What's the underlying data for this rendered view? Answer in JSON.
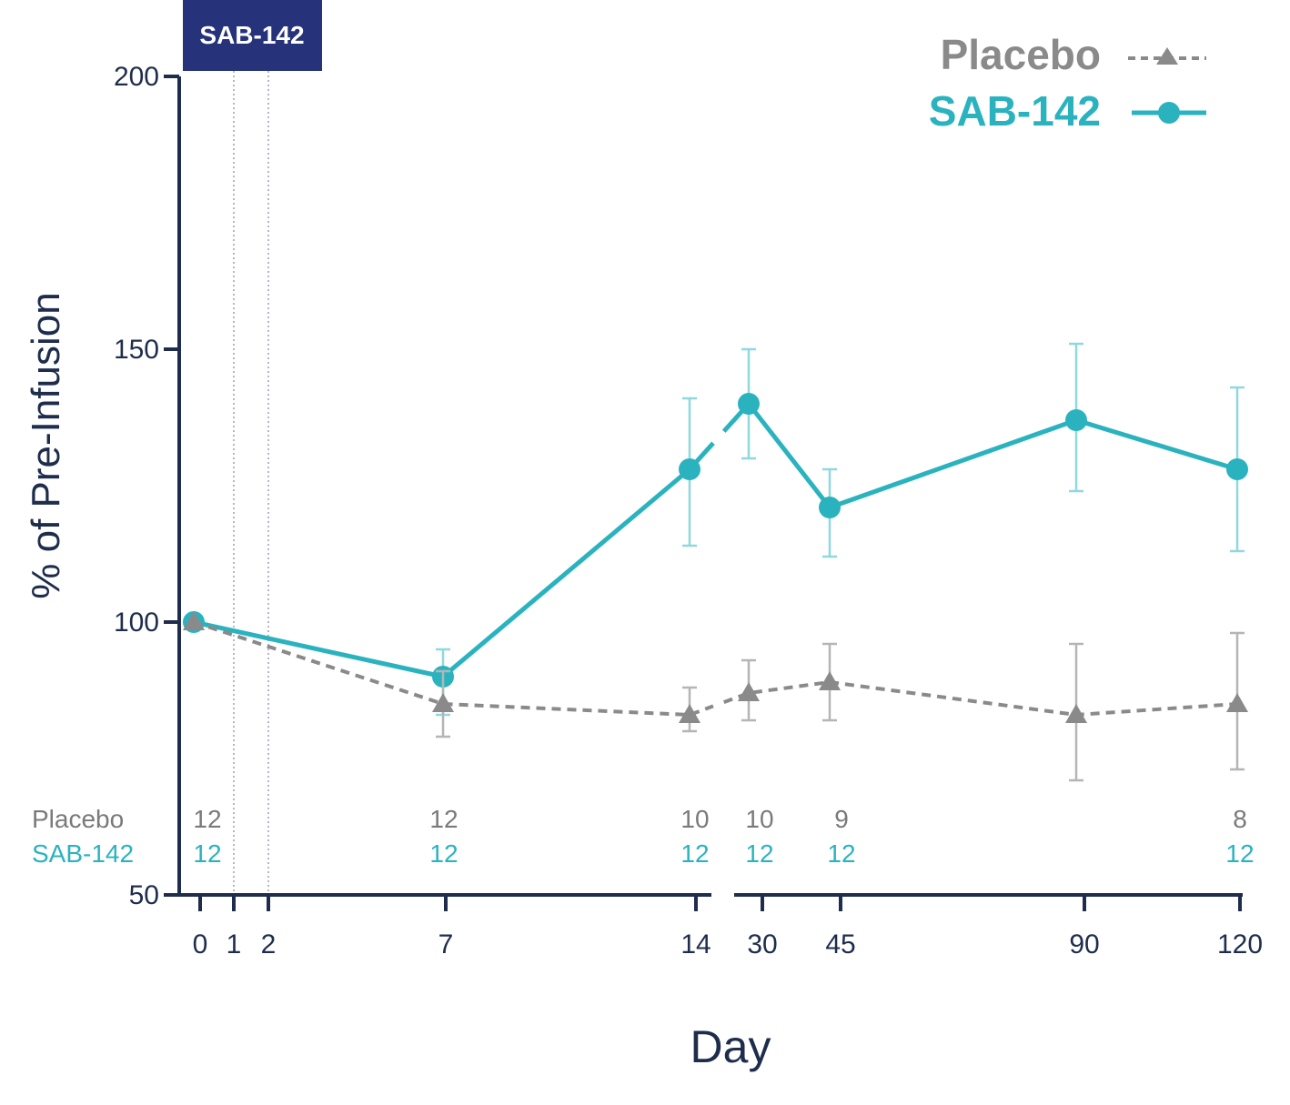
{
  "chart_data": {
    "type": "line",
    "xlabel": "Day",
    "ylabel": "% of Pre-Infusion",
    "ylim": [
      50,
      200
    ],
    "yticks": [
      "50",
      "100",
      "150",
      "200"
    ],
    "xtick_labels": [
      "0",
      "1",
      "2",
      "7",
      "14",
      "30",
      "45",
      "90",
      "120"
    ],
    "x_axis_broken": true,
    "dosing_box_label": "SAB-142",
    "series": [
      {
        "name": "SAB-142",
        "color": "#2ab3bf",
        "marker": "circle",
        "line": "solid",
        "x": [
          0,
          7,
          14,
          30,
          45,
          90,
          120
        ],
        "y": [
          100,
          90,
          128,
          140,
          121,
          137,
          128
        ],
        "err_low": [
          100,
          83,
          114,
          130,
          112,
          124,
          113
        ],
        "err_high": [
          100,
          95,
          141,
          150,
          128,
          151,
          143
        ]
      },
      {
        "name": "Placebo",
        "color": "#8a8a8a",
        "marker": "triangle",
        "line": "dashed",
        "x": [
          0,
          7,
          14,
          30,
          45,
          90,
          120
        ],
        "y": [
          100,
          85,
          83,
          87,
          89,
          83,
          85
        ],
        "err_low": [
          100,
          79,
          80,
          82,
          82,
          71,
          73
        ],
        "err_high": [
          100,
          91,
          88,
          93,
          96,
          96,
          98
        ]
      }
    ],
    "n_counts": {
      "labels": [
        "Placebo",
        "SAB-142"
      ],
      "placebo": [
        {
          "day": 0,
          "n": "12"
        },
        {
          "day": 7,
          "n": "12"
        },
        {
          "day": 14,
          "n": "10"
        },
        {
          "day": 30,
          "n": "10"
        },
        {
          "day": 45,
          "n": "9"
        },
        {
          "day": 120,
          "n": "8"
        }
      ],
      "sab142": [
        {
          "day": 0,
          "n": "12"
        },
        {
          "day": 7,
          "n": "12"
        },
        {
          "day": 14,
          "n": "12"
        },
        {
          "day": 30,
          "n": "12"
        },
        {
          "day": 45,
          "n": "12"
        },
        {
          "day": 120,
          "n": "12"
        }
      ]
    },
    "legend": [
      {
        "label": "Placebo",
        "color": "#8a8a8a"
      },
      {
        "label": "SAB-142",
        "color": "#2ab3bf"
      }
    ],
    "legend_position": "top-right",
    "colors": {
      "axis": "#1f2d4d",
      "box": "#26337a"
    }
  }
}
